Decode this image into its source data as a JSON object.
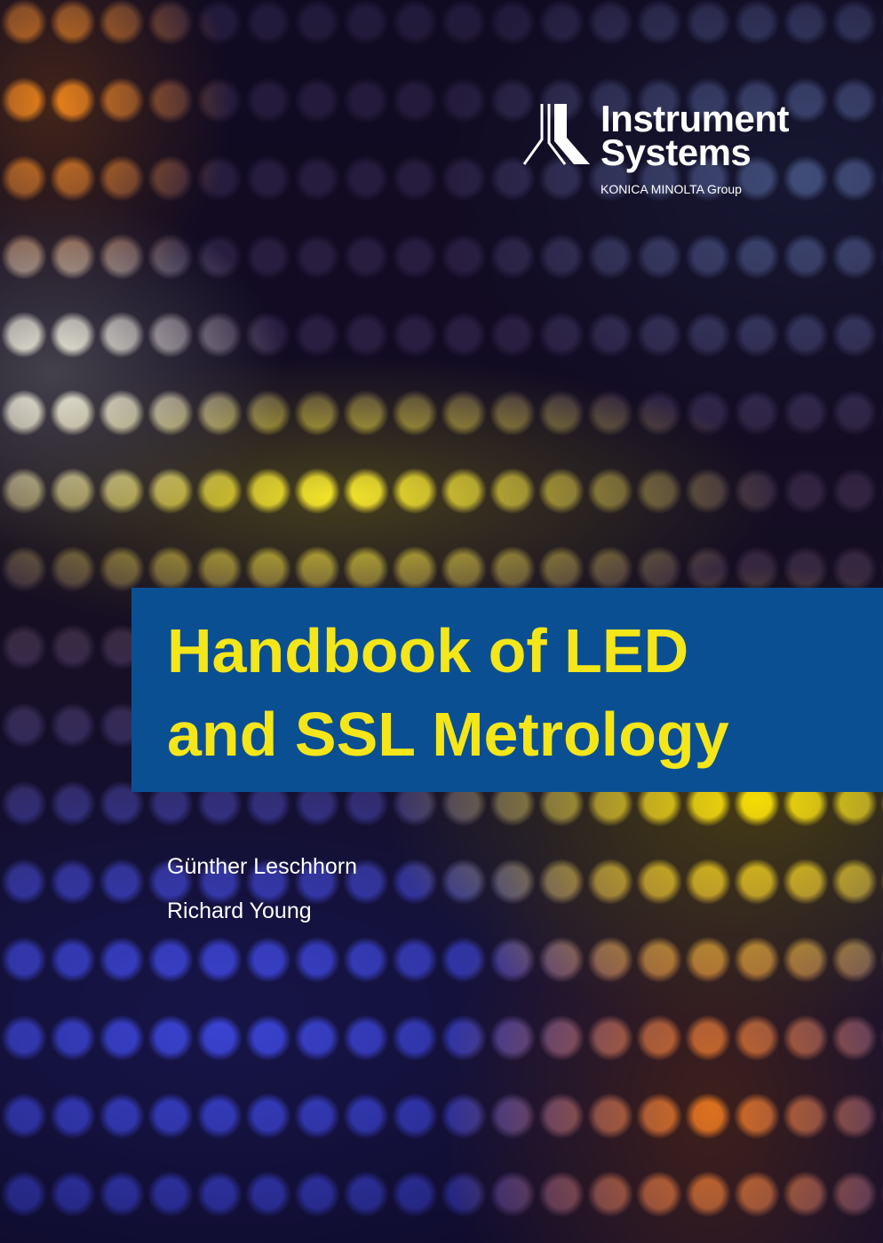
{
  "logo": {
    "line1": "Instrument",
    "line2": "Systems",
    "group": "KONICA MINOLTA Group"
  },
  "title": {
    "line1": "Handbook of LED",
    "line2": "and SSL Metrology"
  },
  "authors": [
    "Günther Leschhorn",
    "Richard Young"
  ],
  "colors": {
    "band": "#0b4f93",
    "title_text": "#f4e619"
  }
}
